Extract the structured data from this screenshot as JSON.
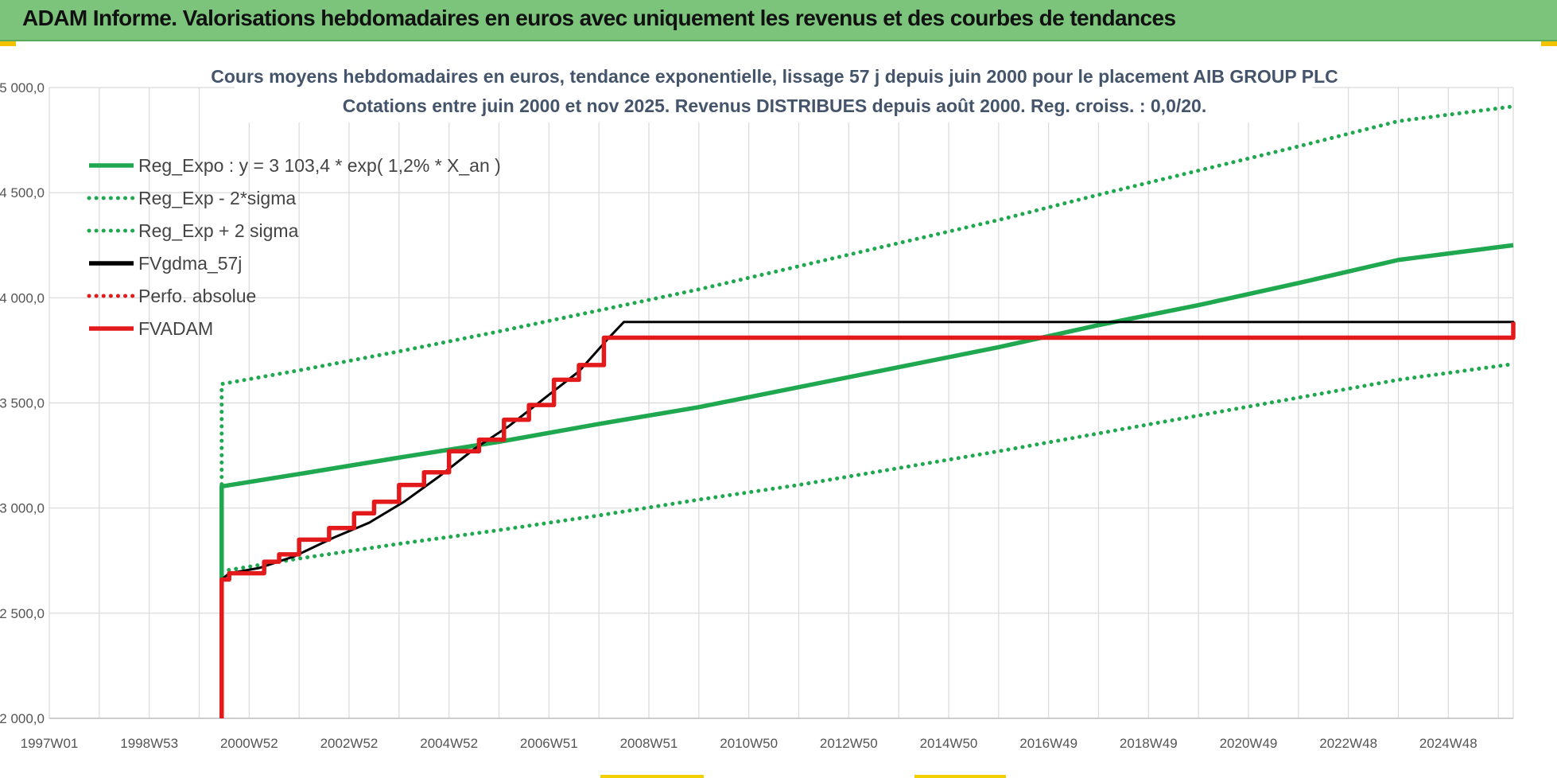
{
  "header": {
    "title": "ADAM Informe. Valorisations hebdomadaires en euros avec uniquement les revenus et des courbes de tendances"
  },
  "chart_data": {
    "type": "line",
    "title": "Cours moyens hebdomadaires en euros, tendance exponentielle, lissage 57 j depuis juin 2000 pour le placement AIB GROUP PLC",
    "subtitle": "Cotations entre juin 2000 et nov 2025.  Revenus DISTRIBUES depuis août 2000.  Reg. croiss. : 0,0/20.",
    "xlabel": "",
    "ylabel": "",
    "x_range": [
      1997.0,
      2026.3
    ],
    "ylim": [
      2000,
      5000
    ],
    "y_ticks": [
      {
        "value": 2000,
        "label": "2 000,0"
      },
      {
        "value": 2500,
        "label": "2 500,0"
      },
      {
        "value": 3000,
        "label": "3 000,0"
      },
      {
        "value": 3500,
        "label": "3 500,0"
      },
      {
        "value": 4000,
        "label": "4 000,0"
      },
      {
        "value": 4500,
        "label": "4 500,0"
      },
      {
        "value": 5000,
        "label": "5 000,0"
      }
    ],
    "x_ticks": [
      {
        "year": 1997.0,
        "label": "1997W01"
      },
      {
        "year": 1999.0,
        "label": "1998W53"
      },
      {
        "year": 2001.0,
        "label": "2000W52"
      },
      {
        "year": 2003.0,
        "label": "2002W52"
      },
      {
        "year": 2005.0,
        "label": "2004W52"
      },
      {
        "year": 2007.0,
        "label": "2006W51"
      },
      {
        "year": 2009.0,
        "label": "2008W51"
      },
      {
        "year": 2011.0,
        "label": "2010W50"
      },
      {
        "year": 2013.0,
        "label": "2012W50"
      },
      {
        "year": 2015.0,
        "label": "2014W50"
      },
      {
        "year": 2017.0,
        "label": "2016W49"
      },
      {
        "year": 2019.0,
        "label": "2018W49"
      },
      {
        "year": 2021.0,
        "label": "2020W49"
      },
      {
        "year": 2023.0,
        "label": "2022W48"
      },
      {
        "year": 2025.0,
        "label": "2024W48"
      }
    ],
    "grid": true,
    "legend_position": "top-left",
    "series": [
      {
        "name": "Reg_Expo : y = 3 103,4 * exp( 1,2% *  X_an )",
        "color": "#1fa84f",
        "style": "solid",
        "x": [
          2000.45,
          2000.45,
          2002,
          2004,
          2006,
          2008,
          2010,
          2012,
          2014,
          2016,
          2018,
          2020,
          2022,
          2024,
          2026.3
        ],
        "y": [
          2660,
          3103,
          3162,
          3240,
          3315,
          3400,
          3480,
          3575,
          3670,
          3765,
          3870,
          3965,
          4070,
          4180,
          4250
        ]
      },
      {
        "name": "Reg_Exp - 2*sigma",
        "color": "#1fa84f",
        "style": "dotted",
        "x": [
          2000.45,
          2002,
          2004,
          2006,
          2008,
          2010,
          2012,
          2014,
          2016,
          2018,
          2020,
          2022,
          2024,
          2026.3
        ],
        "y": [
          2700,
          2760,
          2830,
          2895,
          2965,
          3040,
          3110,
          3190,
          3270,
          3355,
          3440,
          3525,
          3610,
          3685
        ]
      },
      {
        "name": "Reg_Exp + 2 sigma",
        "color": "#1fa84f",
        "style": "dotted",
        "x": [
          2000.45,
          2000.45,
          2002,
          2004,
          2006,
          2008,
          2010,
          2012,
          2014,
          2016,
          2018,
          2020,
          2022,
          2024,
          2026.3
        ],
        "y": [
          2700,
          3590,
          3655,
          3745,
          3840,
          3940,
          4040,
          4150,
          4260,
          4370,
          4490,
          4605,
          4720,
          4840,
          4910
        ]
      },
      {
        "name": "FVgdma_57j",
        "color": "#000000",
        "style": "solid",
        "x": [
          2000.45,
          2000.6,
          2001.2,
          2001.9,
          2002.7,
          2003.4,
          2004.1,
          2004.8,
          2005.5,
          2006.2,
          2006.9,
          2007.6,
          2008.2,
          2008.5,
          2026.3
        ],
        "y": [
          2660,
          2690,
          2715,
          2770,
          2860,
          2930,
          3030,
          3150,
          3280,
          3390,
          3520,
          3650,
          3810,
          3885,
          3885
        ]
      },
      {
        "name": "Perfo. absolue",
        "color": "#e31a1c",
        "style": "dotted",
        "x": [],
        "y": []
      },
      {
        "name": "FVADAM",
        "color": "#e31a1c",
        "style": "step",
        "x": [
          2000.45,
          2000.45,
          2000.6,
          2001.3,
          2001.6,
          2002.0,
          2002.6,
          2003.1,
          2003.5,
          2004.0,
          2004.5,
          2005.0,
          2005.6,
          2006.1,
          2006.6,
          2007.1,
          2007.6,
          2008.1,
          2026.3
        ],
        "y": [
          2000,
          2660,
          2690,
          2745,
          2780,
          2850,
          2905,
          2975,
          3030,
          3110,
          3170,
          3270,
          3325,
          3420,
          3490,
          3610,
          3680,
          3810,
          3885
        ]
      }
    ]
  }
}
